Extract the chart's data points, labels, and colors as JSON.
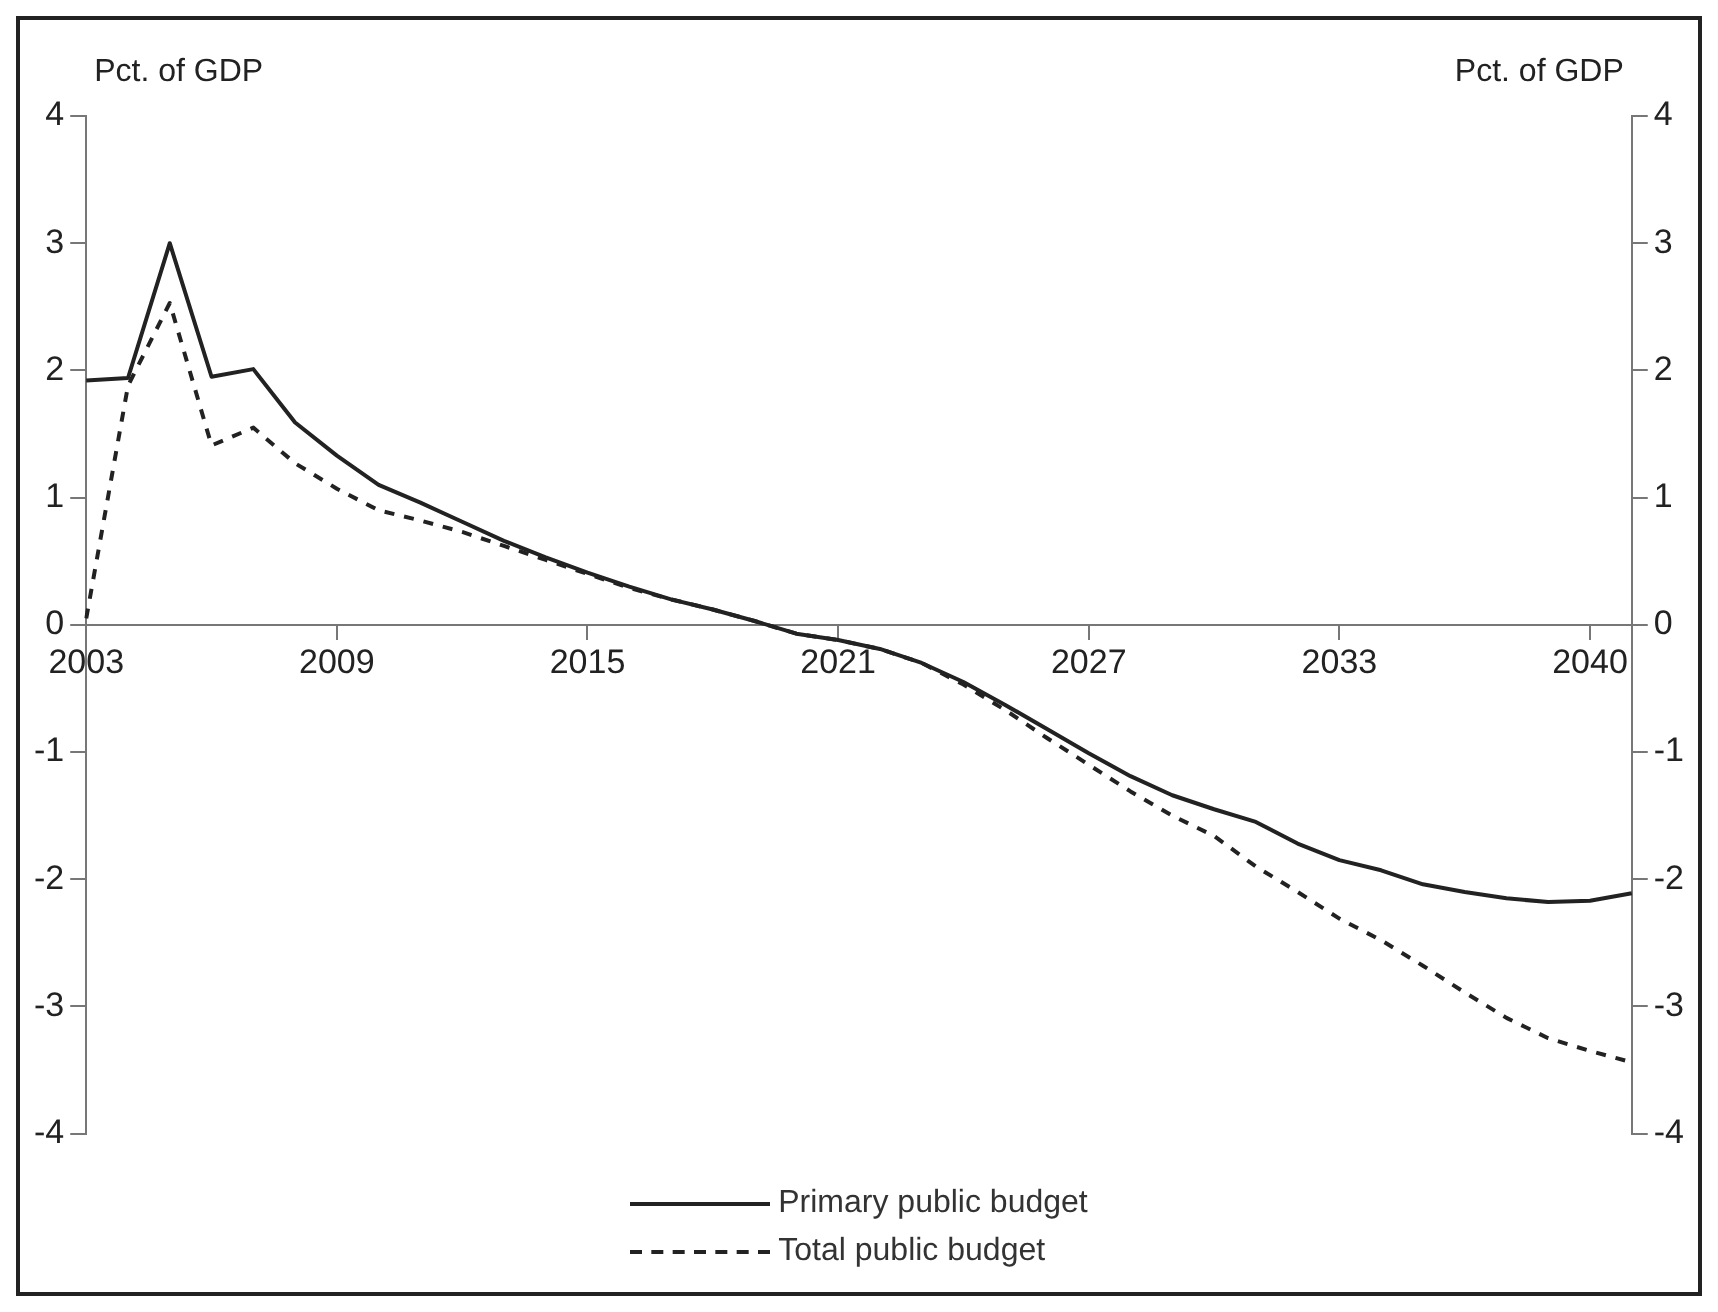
{
  "chart_data": {
    "type": "line",
    "ylabel": "Pct. of GDP",
    "y2label": "Pct. of GDP",
    "categories": [
      "2003",
      null,
      null,
      null,
      null,
      null,
      "2009",
      null,
      null,
      null,
      null,
      null,
      "2015",
      null,
      null,
      null,
      null,
      null,
      "2021",
      null,
      null,
      null,
      null,
      null,
      "2027",
      null,
      null,
      null,
      null,
      null,
      "2033",
      null,
      null,
      null,
      null,
      null,
      "2040",
      null
    ],
    "series": [
      {
        "name": "Primary public budget",
        "color": "#222222",
        "line_style": "solid",
        "values": [
          1.92,
          1.94,
          3.0,
          1.95,
          2.01,
          1.59,
          1.33,
          1.1,
          0.96,
          0.81,
          0.66,
          0.53,
          0.41,
          0.3,
          0.2,
          0.12,
          0.03,
          -0.07,
          -0.12,
          -0.19,
          -0.3,
          -0.45,
          -0.63,
          -0.82,
          -1.01,
          -1.19,
          -1.34,
          -1.45,
          -1.55,
          -1.72,
          -1.85,
          -1.93,
          -2.04,
          -2.1,
          -2.15,
          -2.18,
          -2.17,
          -2.11
        ]
      },
      {
        "name": "Total public budget",
        "color": "#222222",
        "line_style": "dashed",
        "values": [
          0.05,
          1.88,
          2.53,
          1.41,
          1.55,
          1.27,
          1.07,
          0.9,
          0.82,
          0.73,
          0.62,
          0.51,
          0.4,
          0.29,
          0.2,
          0.12,
          0.03,
          -0.07,
          -0.12,
          -0.19,
          -0.3,
          -0.47,
          -0.67,
          -0.89,
          -1.1,
          -1.31,
          -1.5,
          -1.66,
          -1.9,
          -2.1,
          -2.31,
          -2.48,
          -2.68,
          -2.89,
          -3.09,
          -3.25,
          -3.35,
          -3.44
        ]
      }
    ],
    "ylim": [
      -4,
      4
    ],
    "yticks": [
      -4,
      -3,
      -2,
      -1,
      0,
      1,
      2,
      3,
      4
    ],
    "y2lim": [
      -4,
      4
    ],
    "y2ticks": [
      -4,
      -3,
      -2,
      -1,
      0,
      1,
      2,
      3,
      4
    ],
    "legend": "bottom"
  }
}
